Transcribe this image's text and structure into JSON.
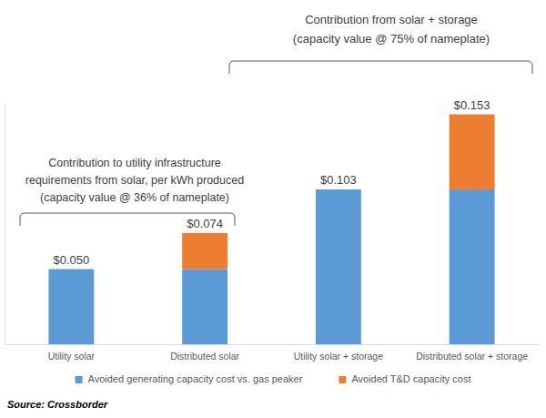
{
  "chart_data": {
    "type": "bar",
    "stacked": true,
    "categories": [
      "Utility solar",
      "Distributed solar",
      "Utility solar + storage",
      "Distributed solar + storage"
    ],
    "series": [
      {
        "name": "Avoided generating capacity cost vs. gas peaker",
        "color": "#5b9bd5",
        "values": [
          0.05,
          0.05,
          0.103,
          0.103
        ]
      },
      {
        "name": "Avoided T&D capacity cost",
        "color": "#ed7d31",
        "values": [
          null,
          0.024,
          null,
          0.05
        ]
      }
    ],
    "totals": [
      0.05,
      0.074,
      0.103,
      0.153
    ],
    "total_labels": [
      "$0.050",
      "$0.074",
      "$0.103",
      "$0.153"
    ],
    "ylim": [
      0,
      0.16
    ],
    "tick_labels": "x",
    "legend": "bottom",
    "annotations": [
      {
        "lines": [
          "Contribution to utility infrastructure",
          "requirements from solar, per kWh produced",
          "(capacity value @ 36% of nameplate)"
        ]
      },
      {
        "lines": [
          "Contribution from solar + storage",
          "(capacity value @ 75% of nameplate)"
        ]
      }
    ],
    "source": "Source: Crossborder"
  }
}
